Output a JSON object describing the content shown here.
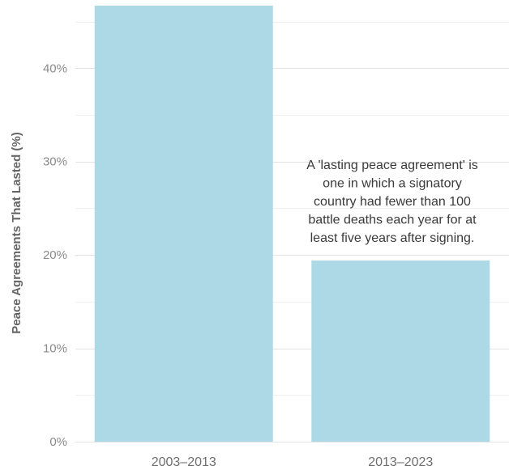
{
  "chart_data": {
    "type": "bar",
    "categories": [
      "2003–2013",
      "2013–2023"
    ],
    "values": [
      46.7,
      19.4
    ],
    "ylabel": "Peace Agreements That Lasted (%)",
    "xlabel": "",
    "ylim": [
      0,
      46.7
    ],
    "yticks": [
      0,
      10,
      20,
      30,
      40
    ],
    "ytick_labels": [
      "0%",
      "10%",
      "20%",
      "30%",
      "40%"
    ],
    "bar_color": "#add8e6",
    "grid": true,
    "annotation": {
      "lines": [
        "A 'lasting peace agreement' is",
        "one in which a signatory",
        "country had fewer than 100",
        "battle  deaths each year for at",
        "least  five years after signing."
      ]
    }
  }
}
